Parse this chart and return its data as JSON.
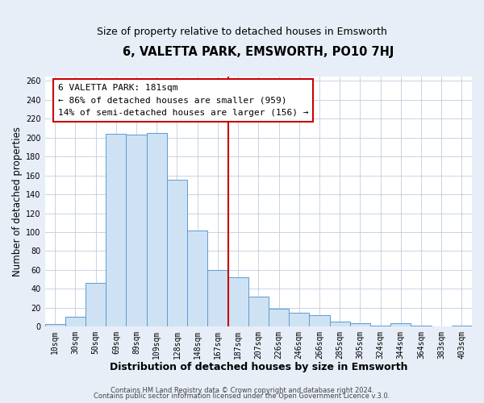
{
  "title": "6, VALETTA PARK, EMSWORTH, PO10 7HJ",
  "subtitle": "Size of property relative to detached houses in Emsworth",
  "xlabel": "Distribution of detached houses by size in Emsworth",
  "ylabel": "Number of detached properties",
  "bar_labels": [
    "10sqm",
    "30sqm",
    "50sqm",
    "69sqm",
    "89sqm",
    "109sqm",
    "128sqm",
    "148sqm",
    "167sqm",
    "187sqm",
    "207sqm",
    "226sqm",
    "246sqm",
    "266sqm",
    "285sqm",
    "305sqm",
    "324sqm",
    "344sqm",
    "364sqm",
    "383sqm",
    "403sqm"
  ],
  "bar_values": [
    3,
    10,
    46,
    204,
    203,
    205,
    155,
    102,
    60,
    52,
    32,
    19,
    15,
    12,
    5,
    4,
    1,
    4,
    1,
    0,
    1
  ],
  "bar_color": "#cfe2f3",
  "bar_edge_color": "#5b9bd5",
  "vline_color": "#cc0000",
  "vline_x_index": 8.5,
  "annotation_title": "6 VALETTA PARK: 181sqm",
  "annotation_line1": "← 86% of detached houses are smaller (959)",
  "annotation_line2": "14% of semi-detached houses are larger (156) →",
  "ylim": [
    0,
    265
  ],
  "yticks": [
    0,
    20,
    40,
    60,
    80,
    100,
    120,
    140,
    160,
    180,
    200,
    220,
    240,
    260
  ],
  "footer1": "Contains HM Land Registry data © Crown copyright and database right 2024.",
  "footer2": "Contains public sector information licensed under the Open Government Licence v.3.0.",
  "bg_color": "#e8eef8",
  "plot_bg_color": "#ffffff",
  "grid_color": "#c0cce0",
  "title_fontsize": 10.5,
  "subtitle_fontsize": 9,
  "xlabel_fontsize": 9,
  "ylabel_fontsize": 8.5,
  "tick_fontsize": 7,
  "annotation_fontsize": 8,
  "footer_fontsize": 6
}
